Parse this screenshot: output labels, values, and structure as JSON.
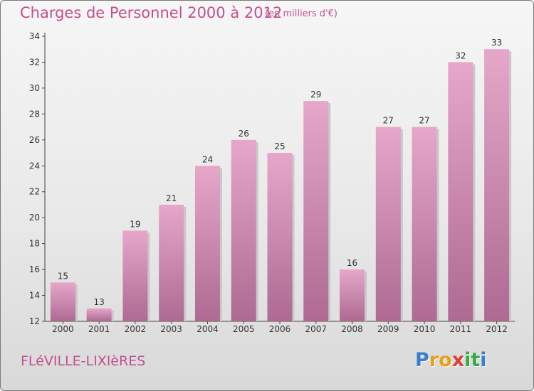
{
  "header": {
    "title": "Charges de Personnel 2000 à 2012",
    "subtitle": "(en milliers d'€)"
  },
  "footer": {
    "commune": "FLéVILLE-LIXIèRES",
    "brand_letters": [
      "P",
      "r",
      "o",
      "x",
      "i",
      "t",
      "i"
    ],
    "brand_colors": [
      "#3a7dd2",
      "#e6a01c",
      "#e6a01c",
      "#d8403a",
      "#3aa845",
      "#3aa845",
      "#3a7dd2"
    ]
  },
  "colors": {
    "bar_light": "#e6a7ca",
    "bar_dark": "#ae6a92",
    "text": "#c2508f"
  },
  "chart_data": {
    "type": "bar",
    "categories": [
      "2000",
      "2001",
      "2002",
      "2003",
      "2004",
      "2005",
      "2006",
      "2007",
      "2008",
      "2009",
      "2010",
      "2011",
      "2012"
    ],
    "values": [
      15,
      13,
      19,
      21,
      24,
      26,
      25,
      29,
      16,
      27,
      27,
      32,
      33
    ],
    "ylim": [
      12,
      34
    ],
    "yticks": [
      12,
      14,
      16,
      18,
      20,
      22,
      24,
      26,
      28,
      30,
      32,
      34
    ],
    "data_labels": [
      "15",
      "13",
      "19",
      "21",
      "24",
      "26",
      "25",
      "29",
      "16",
      "27",
      "27",
      "32",
      "33"
    ],
    "grid": false
  }
}
